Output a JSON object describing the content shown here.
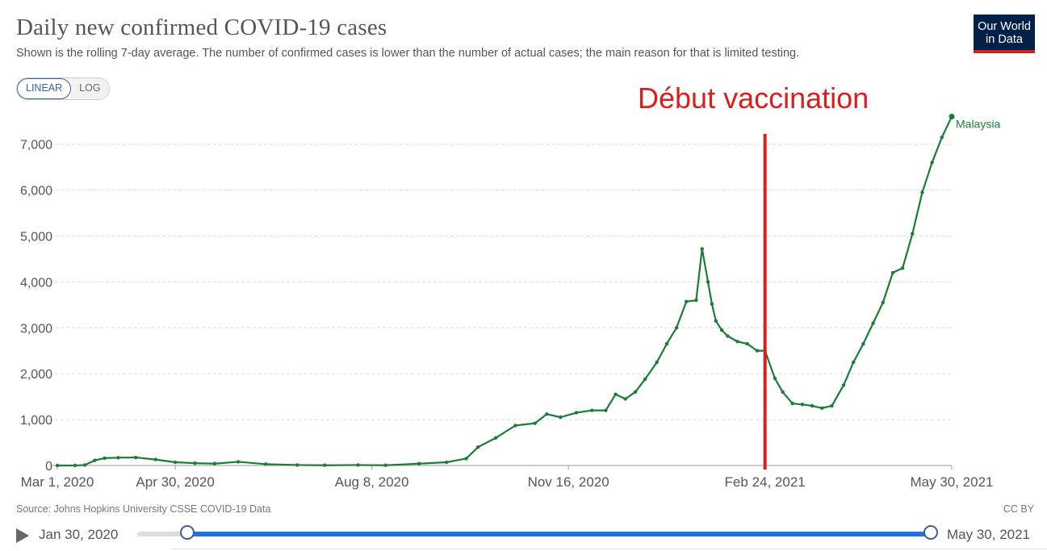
{
  "header": {
    "title": "Daily new confirmed COVID-19 cases",
    "subtitle": "Shown is the rolling 7-day average. The number of confirmed cases is lower than the number of actual cases; the main reason for that is limited testing.",
    "logo_line1": "Our World",
    "logo_line2": "in Data"
  },
  "scale_toggle": {
    "linear": "LINEAR",
    "log": "LOG",
    "selected": "LINEAR"
  },
  "annotation": {
    "text": "Début vaccination",
    "date": "2021-02-24",
    "color": "#dc1d1d"
  },
  "footer": {
    "source": "Source: Johns Hopkins University CSSE COVID-19 Data",
    "license": "CC BY"
  },
  "timeline": {
    "start_label": "Jan 30, 2020",
    "end_label": "May 30, 2021"
  },
  "colors": {
    "series": "#1a7d35",
    "grid": "#dddddd",
    "axis_text": "#555555"
  },
  "chart_data": {
    "type": "line",
    "title": "Daily new confirmed COVID-19 cases",
    "scale": "linear",
    "grid": true,
    "xlim": [
      "2020-03-01",
      "2021-05-30"
    ],
    "ylim": [
      0,
      7600
    ],
    "x_ticks": [
      "Mar 1, 2020",
      "Apr 30, 2020",
      "Aug 8, 2020",
      "Nov 16, 2020",
      "Feb 24, 2021",
      "May 30, 2021"
    ],
    "y_ticks": [
      "0",
      "1,000",
      "2,000",
      "3,000",
      "4,000",
      "5,000",
      "6,000",
      "7,000"
    ],
    "y_tick_values": [
      0,
      1000,
      2000,
      3000,
      4000,
      5000,
      6000,
      7000
    ],
    "series": [
      {
        "name": "Malaysia",
        "x": [
          "2020-03-01",
          "2020-03-10",
          "2020-03-15",
          "2020-03-20",
          "2020-03-25",
          "2020-04-01",
          "2020-04-10",
          "2020-04-20",
          "2020-04-30",
          "2020-05-10",
          "2020-05-20",
          "2020-06-01",
          "2020-06-15",
          "2020-07-01",
          "2020-07-15",
          "2020-08-01",
          "2020-08-15",
          "2020-09-01",
          "2020-09-15",
          "2020-09-25",
          "2020-10-01",
          "2020-10-10",
          "2020-10-20",
          "2020-10-30",
          "2020-11-05",
          "2020-11-12",
          "2020-11-20",
          "2020-11-28",
          "2020-12-05",
          "2020-12-10",
          "2020-12-15",
          "2020-12-20",
          "2020-12-25",
          "2020-12-31",
          "2021-01-05",
          "2021-01-10",
          "2021-01-15",
          "2021-01-20",
          "2021-01-23",
          "2021-01-26",
          "2021-01-28",
          "2021-01-30",
          "2021-02-02",
          "2021-02-05",
          "2021-02-10",
          "2021-02-15",
          "2021-02-20",
          "2021-02-24",
          "2021-03-01",
          "2021-03-05",
          "2021-03-10",
          "2021-03-15",
          "2021-03-20",
          "2021-03-25",
          "2021-03-30",
          "2021-04-05",
          "2021-04-10",
          "2021-04-15",
          "2021-04-20",
          "2021-04-25",
          "2021-04-30",
          "2021-05-05",
          "2021-05-10",
          "2021-05-15",
          "2021-05-20",
          "2021-05-25",
          "2021-05-30"
        ],
        "y": [
          0,
          0,
          10,
          110,
          160,
          170,
          175,
          130,
          70,
          50,
          40,
          80,
          30,
          10,
          5,
          10,
          5,
          40,
          70,
          150,
          400,
          600,
          870,
          920,
          1120,
          1050,
          1150,
          1200,
          1200,
          1550,
          1450,
          1600,
          1880,
          2250,
          2650,
          3000,
          3570,
          3600,
          4720,
          4000,
          3520,
          3150,
          2950,
          2820,
          2700,
          2650,
          2500,
          2500,
          1900,
          1600,
          1350,
          1330,
          1300,
          1250,
          1300,
          1750,
          2250,
          2650,
          3100,
          3550,
          4200,
          4300,
          5050,
          5950,
          6600,
          7150,
          7600
        ]
      }
    ]
  }
}
